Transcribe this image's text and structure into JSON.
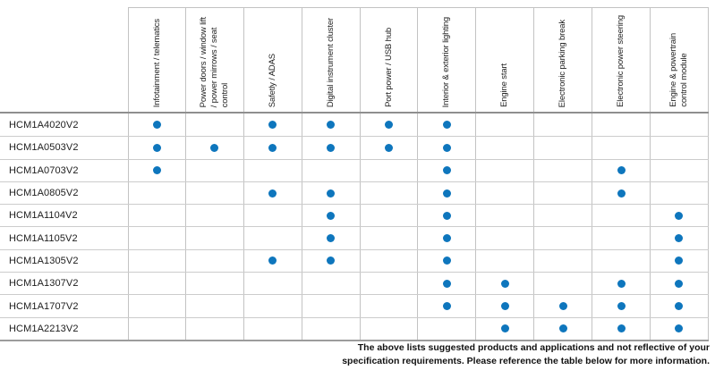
{
  "table": {
    "columns": [
      "Infotainment / telematics",
      "Power doors / window lift\n/ power mirrows / seat\ncontrol",
      "Safetly / ADAS",
      "Digital instrument cluster",
      "Port power / USB hub",
      "Interior & exterior lighting",
      "Engine start",
      "Electronic parking break",
      "Electronic power steering",
      "Engine & powertrain\ncontrol module"
    ],
    "rows": [
      {
        "part": "HCM1A4020V2",
        "applications": [
          1,
          0,
          1,
          1,
          1,
          1,
          0,
          0,
          0,
          0
        ]
      },
      {
        "part": "HCM1A0503V2",
        "applications": [
          1,
          1,
          1,
          1,
          1,
          1,
          0,
          0,
          0,
          0
        ]
      },
      {
        "part": "HCM1A0703V2",
        "applications": [
          1,
          0,
          0,
          0,
          0,
          1,
          0,
          0,
          1,
          0
        ]
      },
      {
        "part": "HCM1A0805V2",
        "applications": [
          0,
          0,
          1,
          1,
          0,
          1,
          0,
          0,
          1,
          0
        ]
      },
      {
        "part": "HCM1A1104V2",
        "applications": [
          0,
          0,
          0,
          1,
          0,
          1,
          0,
          0,
          0,
          1
        ]
      },
      {
        "part": "HCM1A1105V2",
        "applications": [
          0,
          0,
          0,
          1,
          0,
          1,
          0,
          0,
          0,
          1
        ]
      },
      {
        "part": "HCM1A1305V2",
        "applications": [
          0,
          0,
          1,
          1,
          0,
          1,
          0,
          0,
          0,
          1
        ]
      },
      {
        "part": "HCM1A1307V2",
        "applications": [
          0,
          0,
          0,
          0,
          0,
          1,
          1,
          0,
          1,
          1
        ]
      },
      {
        "part": "HCM1A1707V2",
        "applications": [
          0,
          0,
          0,
          0,
          0,
          1,
          1,
          1,
          1,
          1
        ]
      },
      {
        "part": "HCM1A2213V2",
        "applications": [
          0,
          0,
          0,
          0,
          0,
          0,
          1,
          1,
          1,
          1
        ]
      }
    ]
  },
  "footer": {
    "line1": "The above lists suggested products and applications and not reflective of your",
    "line2": "specification requirements. Please reference the table below for more information."
  },
  "colors": {
    "dot_blue": "#0e76bd",
    "grid_line": "#c3c3c3",
    "row_line": "#cccccc",
    "dark_rule": "#8f8f8f"
  }
}
